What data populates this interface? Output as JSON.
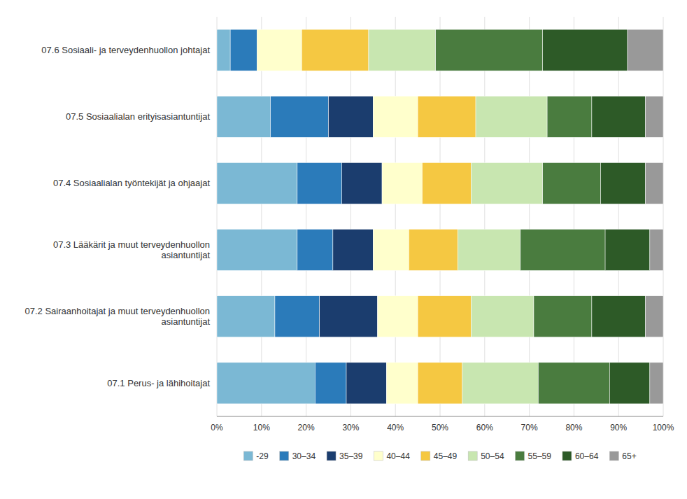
{
  "chart_data": {
    "type": "bar",
    "orientation": "horizontal",
    "stacked": true,
    "grid": true,
    "legend": "bottom",
    "categories": [
      "07.1 Perus- ja lähihoitajat",
      "07.2 Sairaanhoitajat ja muut terveydenhuollon\nasiantuntijat",
      "07.3 Lääkärit ja muut terveydenhuollon\nasiantuntijat",
      "07.4 Sosiaalialan työntekijät ja ohjaajat",
      "07.5 Sosiaalialan erityisasiantuntijat",
      "07.6 Sosiaali- ja terveydenhuollon johtajat"
    ],
    "series": [
      {
        "name": "-29",
        "color": "#7bb8d4",
        "values": [
          22,
          13,
          18,
          18,
          12,
          3
        ]
      },
      {
        "name": "30–34",
        "color": "#2b7bba",
        "values": [
          7,
          10,
          8,
          10,
          13,
          6
        ]
      },
      {
        "name": "35–39",
        "color": "#1b3d6e",
        "values": [
          9,
          13,
          9,
          9,
          10,
          0
        ]
      },
      {
        "name": "40–44",
        "color": "#ffffcc",
        "values": [
          7,
          9,
          8,
          9,
          10,
          10
        ]
      },
      {
        "name": "45–49",
        "color": "#f5c842",
        "values": [
          10,
          12,
          11,
          11,
          13,
          15
        ]
      },
      {
        "name": "50–54",
        "color": "#c8e6b0",
        "values": [
          17,
          14,
          14,
          16,
          16,
          15
        ]
      },
      {
        "name": "55–59",
        "color": "#4a7c3f",
        "values": [
          16,
          13,
          19,
          13,
          10,
          24
        ]
      },
      {
        "name": "60–64",
        "color": "#2d5a27",
        "values": [
          9,
          12,
          10,
          10,
          12,
          19
        ]
      },
      {
        "name": "65+",
        "color": "#999999",
        "values": [
          3,
          4,
          3,
          4,
          4,
          8
        ]
      }
    ],
    "xlim": [
      0,
      100
    ],
    "xticks": [
      {
        "value": 0,
        "label": "0%"
      },
      {
        "value": 10,
        "label": "10%"
      },
      {
        "value": 20,
        "label": "20%"
      },
      {
        "value": 30,
        "label": "30%"
      },
      {
        "value": 40,
        "label": "40%"
      },
      {
        "value": 50,
        "label": "50%"
      },
      {
        "value": 60,
        "label": "60%"
      },
      {
        "value": 70,
        "label": "70%"
      },
      {
        "value": 80,
        "label": "80%"
      },
      {
        "value": 90,
        "label": "90%"
      },
      {
        "value": 100,
        "label": "100%"
      }
    ]
  }
}
